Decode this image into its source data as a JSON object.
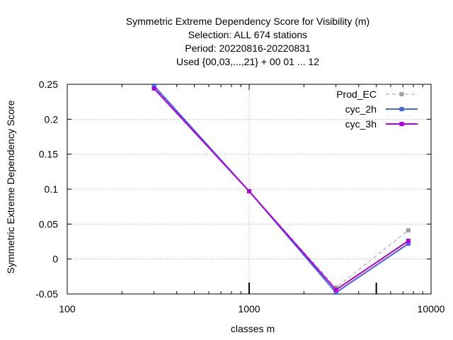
{
  "chart_data": {
    "type": "line",
    "title_lines": [
      "Symmetric Extreme Dependency Score  for Visibility (m)",
      "Selection: ALL    674 stations",
      "Period: 20220816-20220831",
      "Used {00,03,...,21} + 00 01 ... 12"
    ],
    "xlabel": "classes m",
    "ylabel": "Symmetric Extreme Dependency Score",
    "x_scale": "log",
    "xlim": [
      100,
      10000
    ],
    "ylim": [
      -0.05,
      0.25
    ],
    "x_ticks": [
      100,
      1000,
      10000
    ],
    "x_tick_labels": [
      "100",
      "1000",
      "10000"
    ],
    "y_ticks": [
      -0.05,
      0,
      0.05,
      0.1,
      0.15,
      0.2,
      0.25
    ],
    "y_tick_labels": [
      "-0.05",
      "0",
      "0.05",
      "0.1",
      "0.15",
      "0.2",
      "0.25"
    ],
    "x_minor_marks": [
      1000,
      5000
    ],
    "grid": true,
    "legend_position": "top-right",
    "series": [
      {
        "name": "Prod_EC",
        "x": [
          300,
          1000,
          3000,
          7500
        ],
        "y": [
          0.246,
          0.097,
          -0.041,
          0.041
        ],
        "color": "#a0a0a0",
        "dashed": true
      },
      {
        "name": "cyc_2h",
        "x": [
          300,
          1000,
          3000,
          7500
        ],
        "y": [
          0.248,
          0.097,
          -0.048,
          0.022
        ],
        "color": "#4169e1",
        "dashed": false
      },
      {
        "name": "cyc_3h",
        "x": [
          300,
          1000,
          3000,
          7500
        ],
        "y": [
          0.244,
          0.097,
          -0.044,
          0.026
        ],
        "color": "#b000e0",
        "dashed": false
      }
    ]
  }
}
